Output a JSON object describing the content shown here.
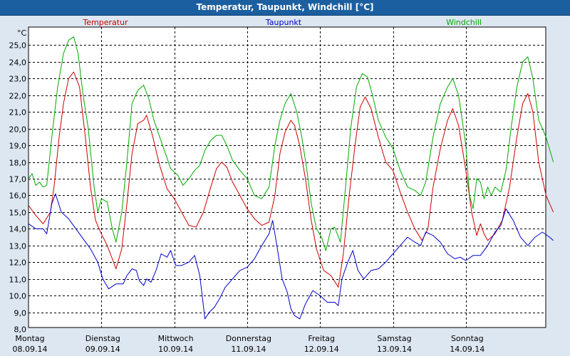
{
  "chart_data": {
    "type": "line",
    "title": "Temperatur, Taupunkt, Windchill [°C]",
    "ylabel": "°C",
    "ylim": [
      8.0,
      26.0
    ],
    "yticks": [
      "8,0",
      "9,0",
      "10,0",
      "11,0",
      "12,0",
      "13,0",
      "14,0",
      "15,0",
      "16,0",
      "17,0",
      "18,0",
      "19,0",
      "20,0",
      "21,0",
      "22,0",
      "23,0",
      "24,0",
      "25,0"
    ],
    "xlim": [
      0,
      7.0
    ],
    "xticks": [
      {
        "day": "Montag",
        "date": "08.09.14"
      },
      {
        "day": "Dienstag",
        "date": "09.09.14"
      },
      {
        "day": "Mittwoch",
        "date": "10.09.14"
      },
      {
        "day": "Donnerstag",
        "date": "11.09.14"
      },
      {
        "day": "Freitag",
        "date": "12.09.14"
      },
      {
        "day": "Samstag",
        "date": "13.09.14"
      },
      {
        "day": "Sonntag",
        "date": "14.09.14"
      }
    ],
    "grid": true,
    "legend_position": "top",
    "series": [
      {
        "name": "Temperatur",
        "color": "#cc0000",
        "points": [
          [
            0.0,
            15.4
          ],
          [
            0.1,
            14.8
          ],
          [
            0.2,
            14.3
          ],
          [
            0.3,
            15.0
          ],
          [
            0.35,
            16.5
          ],
          [
            0.42,
            19.5
          ],
          [
            0.48,
            21.5
          ],
          [
            0.55,
            23.0
          ],
          [
            0.62,
            23.4
          ],
          [
            0.7,
            22.5
          ],
          [
            0.78,
            19.5
          ],
          [
            0.85,
            16.5
          ],
          [
            0.92,
            14.5
          ],
          [
            1.0,
            13.7
          ],
          [
            1.08,
            13.0
          ],
          [
            1.15,
            12.2
          ],
          [
            1.2,
            11.6
          ],
          [
            1.28,
            12.8
          ],
          [
            1.35,
            15.5
          ],
          [
            1.42,
            18.5
          ],
          [
            1.5,
            20.3
          ],
          [
            1.58,
            20.5
          ],
          [
            1.62,
            20.8
          ],
          [
            1.7,
            19.6
          ],
          [
            1.8,
            17.8
          ],
          [
            1.9,
            16.4
          ],
          [
            2.0,
            15.8
          ],
          [
            2.1,
            15.0
          ],
          [
            2.2,
            14.2
          ],
          [
            2.3,
            14.1
          ],
          [
            2.4,
            15.0
          ],
          [
            2.5,
            16.5
          ],
          [
            2.58,
            17.6
          ],
          [
            2.65,
            18.0
          ],
          [
            2.72,
            17.7
          ],
          [
            2.8,
            16.8
          ],
          [
            2.9,
            16.0
          ],
          [
            3.0,
            15.2
          ],
          [
            3.1,
            14.6
          ],
          [
            3.2,
            14.2
          ],
          [
            3.3,
            14.4
          ],
          [
            3.38,
            16.0
          ],
          [
            3.45,
            18.5
          ],
          [
            3.52,
            19.8
          ],
          [
            3.6,
            20.5
          ],
          [
            3.65,
            20.2
          ],
          [
            3.72,
            19.0
          ],
          [
            3.8,
            17.0
          ],
          [
            3.88,
            14.5
          ],
          [
            3.95,
            12.8
          ],
          [
            4.05,
            11.5
          ],
          [
            4.15,
            11.2
          ],
          [
            4.25,
            10.5
          ],
          [
            4.32,
            12.5
          ],
          [
            4.4,
            16.0
          ],
          [
            4.48,
            19.0
          ],
          [
            4.55,
            21.3
          ],
          [
            4.62,
            21.9
          ],
          [
            4.7,
            21.2
          ],
          [
            4.8,
            19.5
          ],
          [
            4.9,
            18.0
          ],
          [
            5.0,
            17.5
          ],
          [
            5.1,
            16.2
          ],
          [
            5.2,
            15.0
          ],
          [
            5.3,
            14.0
          ],
          [
            5.4,
            13.3
          ],
          [
            5.48,
            14.0
          ],
          [
            5.55,
            16.5
          ],
          [
            5.65,
            18.8
          ],
          [
            5.75,
            20.5
          ],
          [
            5.82,
            21.2
          ],
          [
            5.9,
            20.2
          ],
          [
            6.0,
            17.5
          ],
          [
            6.08,
            15.0
          ],
          [
            6.15,
            13.6
          ],
          [
            6.2,
            14.3
          ],
          [
            6.25,
            13.7
          ],
          [
            6.3,
            13.3
          ],
          [
            6.4,
            13.7
          ],
          [
            6.5,
            14.5
          ],
          [
            6.6,
            16.5
          ],
          [
            6.7,
            19.5
          ],
          [
            6.78,
            21.5
          ],
          [
            6.85,
            22.1
          ],
          [
            6.92,
            21.0
          ],
          [
            7.0,
            18.0
          ],
          [
            7.1,
            16.0
          ],
          [
            7.2,
            15.0
          ]
        ]
      },
      {
        "name": "Taupunkt",
        "color": "#0000cc",
        "points": [
          [
            0.0,
            14.3
          ],
          [
            0.1,
            14.0
          ],
          [
            0.2,
            14.0
          ],
          [
            0.25,
            13.7
          ],
          [
            0.32,
            15.5
          ],
          [
            0.37,
            16.1
          ],
          [
            0.45,
            15.0
          ],
          [
            0.55,
            14.6
          ],
          [
            0.65,
            14.0
          ],
          [
            0.75,
            13.4
          ],
          [
            0.85,
            12.8
          ],
          [
            0.95,
            12.0
          ],
          [
            1.02,
            11.0
          ],
          [
            1.1,
            10.4
          ],
          [
            1.2,
            10.7
          ],
          [
            1.3,
            10.7
          ],
          [
            1.35,
            11.2
          ],
          [
            1.42,
            11.6
          ],
          [
            1.48,
            11.5
          ],
          [
            1.52,
            10.9
          ],
          [
            1.58,
            10.6
          ],
          [
            1.62,
            11.0
          ],
          [
            1.68,
            10.8
          ],
          [
            1.75,
            11.5
          ],
          [
            1.82,
            12.5
          ],
          [
            1.9,
            12.3
          ],
          [
            1.95,
            12.7
          ],
          [
            2.02,
            11.8
          ],
          [
            2.1,
            11.8
          ],
          [
            2.2,
            12.0
          ],
          [
            2.28,
            12.4
          ],
          [
            2.35,
            11.2
          ],
          [
            2.42,
            8.6
          ],
          [
            2.48,
            9.0
          ],
          [
            2.55,
            9.3
          ],
          [
            2.62,
            9.8
          ],
          [
            2.7,
            10.5
          ],
          [
            2.8,
            11.0
          ],
          [
            2.9,
            11.5
          ],
          [
            3.0,
            11.7
          ],
          [
            3.1,
            12.2
          ],
          [
            3.2,
            13.0
          ],
          [
            3.3,
            13.7
          ],
          [
            3.35,
            14.5
          ],
          [
            3.4,
            13.2
          ],
          [
            3.48,
            11.0
          ],
          [
            3.55,
            10.2
          ],
          [
            3.6,
            9.2
          ],
          [
            3.65,
            8.8
          ],
          [
            3.72,
            8.6
          ],
          [
            3.8,
            9.5
          ],
          [
            3.9,
            10.3
          ],
          [
            4.0,
            10.0
          ],
          [
            4.1,
            9.6
          ],
          [
            4.2,
            9.6
          ],
          [
            4.25,
            9.4
          ],
          [
            4.3,
            11.0
          ],
          [
            4.38,
            12.0
          ],
          [
            4.45,
            12.7
          ],
          [
            4.52,
            11.5
          ],
          [
            4.6,
            11.0
          ],
          [
            4.7,
            11.5
          ],
          [
            4.8,
            11.6
          ],
          [
            4.9,
            12.0
          ],
          [
            5.0,
            12.5
          ],
          [
            5.1,
            13.0
          ],
          [
            5.2,
            13.5
          ],
          [
            5.3,
            13.2
          ],
          [
            5.38,
            13.0
          ],
          [
            5.45,
            13.8
          ],
          [
            5.55,
            13.6
          ],
          [
            5.65,
            13.2
          ],
          [
            5.75,
            12.5
          ],
          [
            5.85,
            12.2
          ],
          [
            5.92,
            12.3
          ],
          [
            6.0,
            12.1
          ],
          [
            6.1,
            12.4
          ],
          [
            6.2,
            12.4
          ],
          [
            6.3,
            13.0
          ],
          [
            6.4,
            13.8
          ],
          [
            6.48,
            14.2
          ],
          [
            6.55,
            15.2
          ],
          [
            6.65,
            14.5
          ],
          [
            6.75,
            13.5
          ],
          [
            6.85,
            13.0
          ],
          [
            6.95,
            13.5
          ],
          [
            7.05,
            13.8
          ],
          [
            7.15,
            13.5
          ],
          [
            7.2,
            13.3
          ]
        ]
      },
      {
        "name": "Windchill",
        "color": "#00aa00",
        "points": [
          [
            0.0,
            17.0
          ],
          [
            0.05,
            17.3
          ],
          [
            0.1,
            16.6
          ],
          [
            0.15,
            16.8
          ],
          [
            0.2,
            16.5
          ],
          [
            0.25,
            16.6
          ],
          [
            0.32,
            19.5
          ],
          [
            0.4,
            22.5
          ],
          [
            0.48,
            24.5
          ],
          [
            0.55,
            25.3
          ],
          [
            0.62,
            25.5
          ],
          [
            0.68,
            24.5
          ],
          [
            0.75,
            22.0
          ],
          [
            0.82,
            20.0
          ],
          [
            0.9,
            16.5
          ],
          [
            0.95,
            15.0
          ],
          [
            1.0,
            15.8
          ],
          [
            1.08,
            15.6
          ],
          [
            1.15,
            14.0
          ],
          [
            1.2,
            13.2
          ],
          [
            1.28,
            15.0
          ],
          [
            1.35,
            18.0
          ],
          [
            1.42,
            21.5
          ],
          [
            1.5,
            22.3
          ],
          [
            1.58,
            22.6
          ],
          [
            1.65,
            21.8
          ],
          [
            1.72,
            20.5
          ],
          [
            1.8,
            19.5
          ],
          [
            1.88,
            18.5
          ],
          [
            1.95,
            17.6
          ],
          [
            2.05,
            17.2
          ],
          [
            2.12,
            16.6
          ],
          [
            2.2,
            17.0
          ],
          [
            2.28,
            17.5
          ],
          [
            2.35,
            17.8
          ],
          [
            2.42,
            18.7
          ],
          [
            2.5,
            19.3
          ],
          [
            2.58,
            19.6
          ],
          [
            2.65,
            19.6
          ],
          [
            2.72,
            19.0
          ],
          [
            2.8,
            18.1
          ],
          [
            2.9,
            17.5
          ],
          [
            3.0,
            17.0
          ],
          [
            3.1,
            16.0
          ],
          [
            3.2,
            15.8
          ],
          [
            3.3,
            16.5
          ],
          [
            3.38,
            19.0
          ],
          [
            3.45,
            20.5
          ],
          [
            3.52,
            21.5
          ],
          [
            3.6,
            22.1
          ],
          [
            3.68,
            21.0
          ],
          [
            3.75,
            19.5
          ],
          [
            3.82,
            17.5
          ],
          [
            3.88,
            15.5
          ],
          [
            3.95,
            14.0
          ],
          [
            4.02,
            13.5
          ],
          [
            4.08,
            12.7
          ],
          [
            4.15,
            14.0
          ],
          [
            4.2,
            14.1
          ],
          [
            4.28,
            13.2
          ],
          [
            4.35,
            16.5
          ],
          [
            4.42,
            20.0
          ],
          [
            4.5,
            22.5
          ],
          [
            4.58,
            23.3
          ],
          [
            4.65,
            23.1
          ],
          [
            4.72,
            22.0
          ],
          [
            4.8,
            20.5
          ],
          [
            4.9,
            19.5
          ],
          [
            5.0,
            18.8
          ],
          [
            5.1,
            17.5
          ],
          [
            5.2,
            16.5
          ],
          [
            5.3,
            16.3
          ],
          [
            5.38,
            16.0
          ],
          [
            5.45,
            16.8
          ],
          [
            5.55,
            19.5
          ],
          [
            5.65,
            21.5
          ],
          [
            5.75,
            22.5
          ],
          [
            5.82,
            23.0
          ],
          [
            5.9,
            22.0
          ],
          [
            6.0,
            19.0
          ],
          [
            6.05,
            16.0
          ],
          [
            6.1,
            15.2
          ],
          [
            6.15,
            17.0
          ],
          [
            6.2,
            16.8
          ],
          [
            6.25,
            15.8
          ],
          [
            6.3,
            16.5
          ],
          [
            6.35,
            16.0
          ],
          [
            6.4,
            16.5
          ],
          [
            6.48,
            16.2
          ],
          [
            6.55,
            17.5
          ],
          [
            6.62,
            20.0
          ],
          [
            6.7,
            22.5
          ],
          [
            6.78,
            24.0
          ],
          [
            6.85,
            24.3
          ],
          [
            6.92,
            23.0
          ],
          [
            7.0,
            20.5
          ],
          [
            7.1,
            19.5
          ],
          [
            7.2,
            18.0
          ]
        ]
      }
    ]
  }
}
